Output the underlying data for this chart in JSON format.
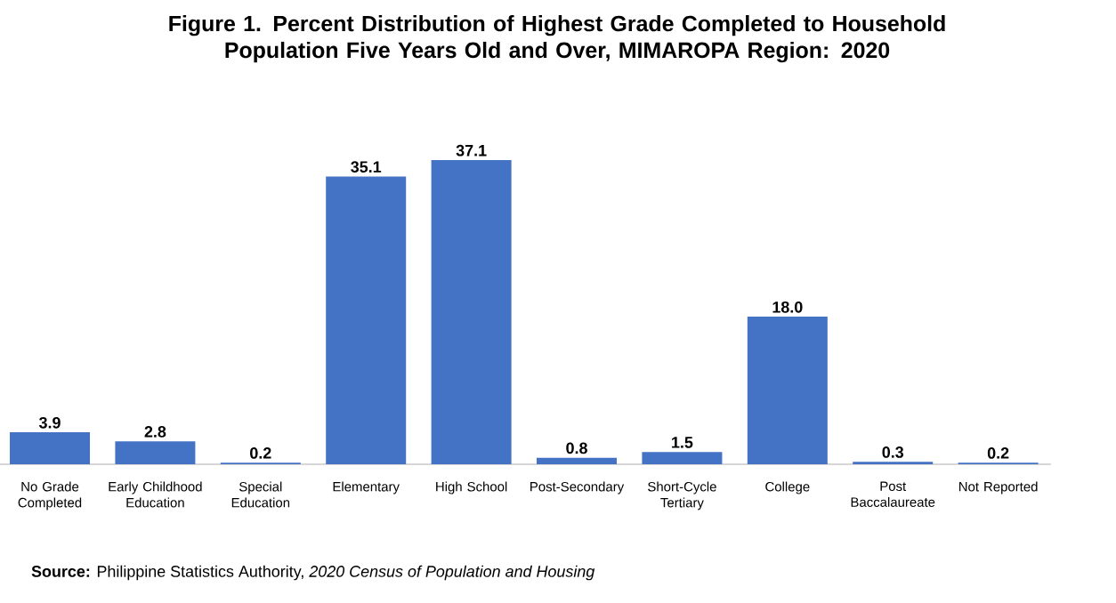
{
  "chart_data": {
    "type": "bar",
    "title": "Figure 1. Percent Distribution of Highest Grade Completed to Household Population Five Years Old and Over, MIMAROPA Region: 2020",
    "categories": [
      "No Grade Completed",
      "Early Childhood Education",
      "Special Education",
      "Elementary",
      "High School",
      "Post-Secondary",
      "Short-Cycle Tertiary",
      "College",
      "Post Baccalaureate",
      "Not Reported"
    ],
    "values": [
      3.9,
      2.8,
      0.2,
      35.1,
      37.1,
      0.8,
      1.5,
      18.0,
      0.3,
      0.2
    ],
    "value_labels": [
      "3.9",
      "2.8",
      "0.2",
      "35.1",
      "37.1",
      "0.8",
      "1.5",
      "18.0",
      "0.3",
      "0.2"
    ],
    "color": "#4472c4",
    "relative": false,
    "annotations": [
      "**Source:**  Philippine Statistics Authority, *2020 Census of Population and Housing*"
    ]
  }
}
